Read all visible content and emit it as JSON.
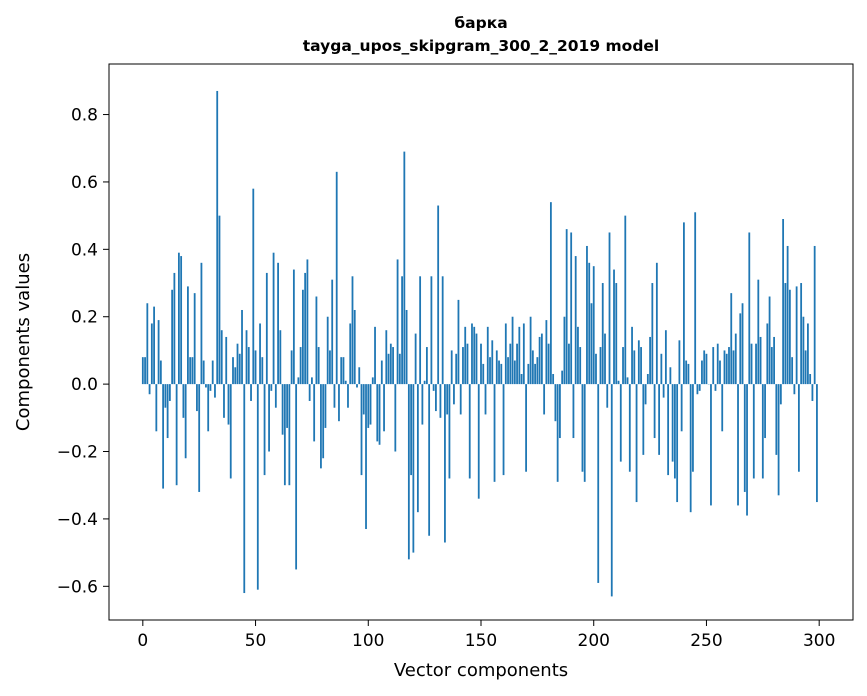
{
  "chart_data": {
    "type": "bar",
    "title": "барка",
    "subtitle": "tayga_upos_skipgram_300_2_2019 model",
    "xlabel": "Vector components",
    "ylabel": "Components values",
    "xlim": [
      -15,
      315
    ],
    "ylim": [
      -0.7,
      0.95
    ],
    "xticks": [
      0,
      50,
      100,
      150,
      200,
      250,
      300
    ],
    "xtick_labels": [
      "0",
      "50",
      "100",
      "150",
      "200",
      "250",
      "300"
    ],
    "yticks": [
      -0.6,
      -0.4,
      -0.2,
      0.0,
      0.2,
      0.4,
      0.6,
      0.8
    ],
    "ytick_labels": [
      "−0.6",
      "−0.4",
      "−0.2",
      "0.0",
      "0.2",
      "0.4",
      "0.6",
      "0.8"
    ],
    "grid": false,
    "bar_color": "#1f77b4",
    "x": [
      0,
      1,
      2,
      3,
      4,
      5,
      6,
      7,
      8,
      9,
      10,
      11,
      12,
      13,
      14,
      15,
      16,
      17,
      18,
      19,
      20,
      21,
      22,
      23,
      24,
      25,
      26,
      27,
      28,
      29,
      30,
      31,
      32,
      33,
      34,
      35,
      36,
      37,
      38,
      39,
      40,
      41,
      42,
      43,
      44,
      45,
      46,
      47,
      48,
      49,
      50,
      51,
      52,
      53,
      54,
      55,
      56,
      57,
      58,
      59,
      60,
      61,
      62,
      63,
      64,
      65,
      66,
      67,
      68,
      69,
      70,
      71,
      72,
      73,
      74,
      75,
      76,
      77,
      78,
      79,
      80,
      81,
      82,
      83,
      84,
      85,
      86,
      87,
      88,
      89,
      90,
      91,
      92,
      93,
      94,
      95,
      96,
      97,
      98,
      99,
      100,
      101,
      102,
      103,
      104,
      105,
      106,
      107,
      108,
      109,
      110,
      111,
      112,
      113,
      114,
      115,
      116,
      117,
      118,
      119,
      120,
      121,
      122,
      123,
      124,
      125,
      126,
      127,
      128,
      129,
      130,
      131,
      132,
      133,
      134,
      135,
      136,
      137,
      138,
      139,
      140,
      141,
      142,
      143,
      144,
      145,
      146,
      147,
      148,
      149,
      150,
      151,
      152,
      153,
      154,
      155,
      156,
      157,
      158,
      159,
      160,
      161,
      162,
      163,
      164,
      165,
      166,
      167,
      168,
      169,
      170,
      171,
      172,
      173,
      174,
      175,
      176,
      177,
      178,
      179,
      180,
      181,
      182,
      183,
      184,
      185,
      186,
      187,
      188,
      189,
      190,
      191,
      192,
      193,
      194,
      195,
      196,
      197,
      198,
      199,
      200,
      201,
      202,
      203,
      204,
      205,
      206,
      207,
      208,
      209,
      210,
      211,
      212,
      213,
      214,
      215,
      216,
      217,
      218,
      219,
      220,
      221,
      222,
      223,
      224,
      225,
      226,
      227,
      228,
      229,
      230,
      231,
      232,
      233,
      234,
      235,
      236,
      237,
      238,
      239,
      240,
      241,
      242,
      243,
      244,
      245,
      246,
      247,
      248,
      249,
      250,
      251,
      252,
      253,
      254,
      255,
      256,
      257,
      258,
      259,
      260,
      261,
      262,
      263,
      264,
      265,
      266,
      267,
      268,
      269,
      270,
      271,
      272,
      273,
      274,
      275,
      276,
      277,
      278,
      279,
      280,
      281,
      282,
      283,
      284,
      285,
      286,
      287,
      288,
      289,
      290,
      291,
      292,
      293,
      294,
      295,
      296,
      297,
      298,
      299
    ],
    "values": [
      0.08,
      0.08,
      0.24,
      -0.03,
      0.18,
      0.23,
      -0.14,
      0.19,
      0.07,
      -0.31,
      -0.07,
      -0.16,
      -0.05,
      0.28,
      0.33,
      -0.3,
      0.39,
      0.38,
      -0.1,
      -0.22,
      0.29,
      0.08,
      0.08,
      0.27,
      -0.08,
      -0.32,
      0.36,
      0.07,
      -0.01,
      -0.14,
      -0.02,
      0.07,
      -0.04,
      0.87,
      0.5,
      0.16,
      -0.1,
      0.14,
      -0.12,
      -0.28,
      0.08,
      0.05,
      0.12,
      0.09,
      0.22,
      -0.62,
      0.16,
      0.11,
      -0.05,
      0.58,
      0.1,
      -0.61,
      0.18,
      0.08,
      -0.27,
      0.33,
      -0.2,
      -0.02,
      0.39,
      -0.07,
      0.36,
      0.16,
      -0.15,
      -0.3,
      -0.13,
      -0.3,
      0.1,
      0.34,
      -0.55,
      0.02,
      0.11,
      0.28,
      0.33,
      0.37,
      -0.05,
      0.02,
      -0.17,
      0.26,
      0.11,
      -0.25,
      -0.22,
      -0.13,
      0.2,
      0.1,
      0.31,
      -0.07,
      0.63,
      -0.11,
      0.08,
      0.08,
      0.01,
      -0.07,
      0.18,
      0.32,
      0.22,
      -0.01,
      0.05,
      -0.27,
      -0.09,
      -0.43,
      -0.13,
      -0.12,
      0.02,
      0.17,
      -0.17,
      -0.18,
      0.07,
      -0.14,
      0.16,
      0.09,
      0.12,
      0.11,
      -0.2,
      0.37,
      0.09,
      0.32,
      0.69,
      0.22,
      -0.52,
      -0.27,
      -0.5,
      0.15,
      -0.38,
      0.32,
      -0.12,
      0.01,
      0.11,
      -0.45,
      0.32,
      -0.02,
      -0.08,
      0.53,
      -0.1,
      0.32,
      -0.47,
      -0.09,
      -0.28,
      0.1,
      -0.06,
      0.09,
      0.25,
      -0.09,
      0.11,
      0.17,
      0.12,
      -0.28,
      0.18,
      0.17,
      0.15,
      -0.34,
      0.12,
      0.06,
      -0.09,
      0.17,
      0.08,
      0.13,
      -0.29,
      0.1,
      0.07,
      0.06,
      -0.27,
      0.18,
      0.08,
      0.12,
      0.2,
      0.07,
      0.12,
      0.17,
      0.03,
      0.18,
      -0.26,
      0.06,
      0.2,
      0.1,
      0.06,
      0.08,
      0.14,
      0.15,
      -0.09,
      0.19,
      0.12,
      0.54,
      0.03,
      -0.11,
      -0.29,
      -0.16,
      0.04,
      0.2,
      0.46,
      0.12,
      0.45,
      -0.16,
      0.38,
      0.17,
      0.11,
      -0.26,
      -0.29,
      0.41,
      0.36,
      0.24,
      0.35,
      0.09,
      -0.59,
      0.11,
      0.3,
      0.15,
      -0.07,
      0.45,
      -0.63,
      0.34,
      0.3,
      0.01,
      -0.23,
      0.11,
      0.5,
      0.02,
      -0.26,
      0.17,
      0.1,
      -0.35,
      0.13,
      0.11,
      -0.21,
      -0.06,
      0.03,
      0.14,
      0.3,
      -0.16,
      0.36,
      -0.21,
      0.09,
      -0.04,
      0.16,
      -0.27,
      0.05,
      -0.23,
      -0.28,
      -0.35,
      0.13,
      -0.14,
      0.48,
      0.07,
      0.06,
      -0.38,
      -0.26,
      0.51,
      -0.03,
      -0.02,
      0.07,
      0.1,
      0.09,
      0.0,
      -0.36,
      0.11,
      -0.02,
      0.12,
      0.07,
      -0.14,
      0.1,
      0.09,
      0.11,
      0.27,
      0.1,
      0.15,
      -0.36,
      0.21,
      0.24,
      -0.32,
      -0.39,
      0.45,
      0.12,
      -0.28,
      0.12,
      0.31,
      0.14,
      -0.28,
      -0.16,
      0.18,
      0.26,
      0.11,
      0.14,
      -0.21,
      -0.33,
      -0.06,
      0.49,
      0.3,
      0.41,
      0.28,
      0.08,
      -0.03,
      0.29,
      -0.26,
      0.3,
      0.2,
      0.1,
      0.18,
      0.03,
      -0.05,
      0.41,
      -0.35
    ]
  }
}
